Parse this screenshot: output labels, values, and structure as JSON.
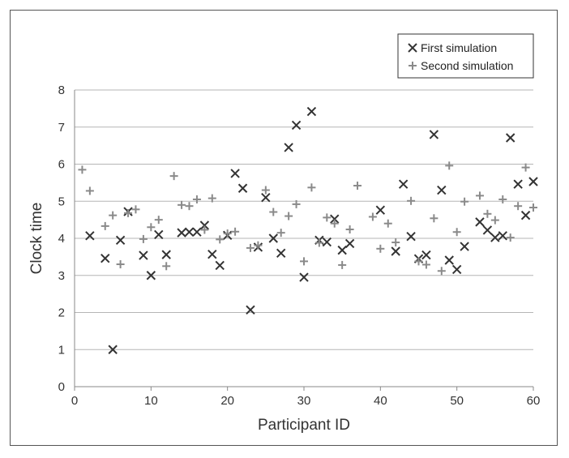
{
  "chart_data": {
    "type": "scatter",
    "title": "",
    "xlabel": "Participant ID",
    "ylabel": "Clock time",
    "xlim": [
      0,
      60
    ],
    "ylim": [
      0,
      8
    ],
    "xticks": [
      0,
      10,
      20,
      30,
      40,
      50,
      60
    ],
    "yticks": [
      0,
      1,
      2,
      3,
      4,
      5,
      6,
      7,
      8
    ],
    "grid": "horizontal",
    "legend_position": "top-right",
    "series": [
      {
        "name": "First simulation",
        "marker": "x",
        "color": "#333333",
        "points": [
          [
            2,
            4.07
          ],
          [
            4,
            3.46
          ],
          [
            5,
            1.0
          ],
          [
            6,
            3.95
          ],
          [
            7,
            4.72
          ],
          [
            9,
            3.54
          ],
          [
            10,
            3.0
          ],
          [
            11,
            4.1
          ],
          [
            12,
            3.56
          ],
          [
            14,
            4.15
          ],
          [
            15,
            4.17
          ],
          [
            16,
            4.17
          ],
          [
            17,
            4.35
          ],
          [
            18,
            3.57
          ],
          [
            19,
            3.27
          ],
          [
            20,
            4.08
          ],
          [
            21,
            5.75
          ],
          [
            22,
            5.35
          ],
          [
            23,
            2.07
          ],
          [
            24,
            3.76
          ],
          [
            25,
            5.1
          ],
          [
            26,
            4.0
          ],
          [
            27,
            3.6
          ],
          [
            28,
            6.45
          ],
          [
            29,
            7.05
          ],
          [
            30,
            2.95
          ],
          [
            31,
            7.42
          ],
          [
            32,
            3.95
          ],
          [
            33,
            3.9
          ],
          [
            34,
            4.52
          ],
          [
            35,
            3.68
          ],
          [
            36,
            3.86
          ],
          [
            40,
            4.76
          ],
          [
            42,
            3.65
          ],
          [
            43,
            5.46
          ],
          [
            44,
            4.05
          ],
          [
            45,
            3.45
          ],
          [
            46,
            3.55
          ],
          [
            47,
            6.8
          ],
          [
            48,
            5.3
          ],
          [
            49,
            3.41
          ],
          [
            50,
            3.16
          ],
          [
            51,
            3.78
          ],
          [
            53,
            4.44
          ],
          [
            54,
            4.22
          ],
          [
            55,
            4.02
          ],
          [
            56,
            4.07
          ],
          [
            57,
            6.71
          ],
          [
            58,
            5.46
          ],
          [
            59,
            4.62
          ],
          [
            60,
            5.53
          ]
        ]
      },
      {
        "name": "Second simulation",
        "marker": "+",
        "color": "#8a8a8a",
        "points": [
          [
            1,
            5.85
          ],
          [
            2,
            5.28
          ],
          [
            4,
            4.33
          ],
          [
            5,
            4.62
          ],
          [
            6,
            3.3
          ],
          [
            7,
            4.68
          ],
          [
            8,
            4.78
          ],
          [
            9,
            3.98
          ],
          [
            10,
            4.3
          ],
          [
            11,
            4.5
          ],
          [
            12,
            3.25
          ],
          [
            13,
            5.68
          ],
          [
            14,
            4.9
          ],
          [
            15,
            4.87
          ],
          [
            16,
            5.05
          ],
          [
            17,
            4.23
          ],
          [
            18,
            5.08
          ],
          [
            19,
            3.97
          ],
          [
            20,
            4.13
          ],
          [
            21,
            4.18
          ],
          [
            23,
            3.74
          ],
          [
            24,
            3.81
          ],
          [
            25,
            5.3
          ],
          [
            26,
            4.71
          ],
          [
            27,
            4.15
          ],
          [
            28,
            4.6
          ],
          [
            29,
            4.92
          ],
          [
            30,
            3.38
          ],
          [
            31,
            5.37
          ],
          [
            32,
            3.88
          ],
          [
            33,
            4.56
          ],
          [
            34,
            4.4
          ],
          [
            35,
            3.28
          ],
          [
            36,
            4.24
          ],
          [
            37,
            5.42
          ],
          [
            39,
            4.58
          ],
          [
            40,
            3.72
          ],
          [
            41,
            4.4
          ],
          [
            42,
            3.89
          ],
          [
            44,
            5.01
          ],
          [
            45,
            3.38
          ],
          [
            46,
            3.29
          ],
          [
            47,
            4.54
          ],
          [
            48,
            3.12
          ],
          [
            49,
            5.96
          ],
          [
            50,
            4.17
          ],
          [
            51,
            4.99
          ],
          [
            53,
            5.15
          ],
          [
            54,
            4.66
          ],
          [
            55,
            4.49
          ],
          [
            56,
            5.05
          ],
          [
            57,
            4.02
          ],
          [
            58,
            4.87
          ],
          [
            59,
            5.91
          ],
          [
            60,
            4.83
          ]
        ]
      }
    ]
  }
}
